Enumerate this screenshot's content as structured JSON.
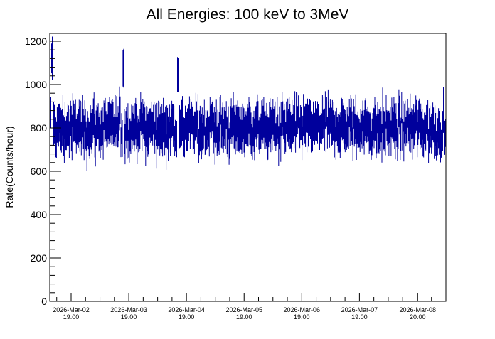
{
  "chart_data": {
    "type": "line",
    "style": "histogram-with-error-bars",
    "title": "All Energies:  100 keV to 3MeV",
    "xlabel": "",
    "ylabel": "Rate(Counts/hour)",
    "ylim": [
      0,
      1236
    ],
    "yticks": [
      0,
      200,
      400,
      600,
      800,
      1000,
      1200
    ],
    "ytick_labels": [
      "0",
      "200",
      "400",
      "600",
      "800",
      "1000",
      "1200"
    ],
    "x_unit": "days since 2026-Mar-02 19:00",
    "xlim": [
      -0.37,
      6.5
    ],
    "xticks": [
      0,
      1,
      2,
      3,
      4,
      5,
      6.01
    ],
    "xtick_labels": [
      {
        "date": "2026-Mar-02",
        "time": "19:00"
      },
      {
        "date": "2026-Mar-03",
        "time": "19:00"
      },
      {
        "date": "2026-Mar-04",
        "time": "19:00"
      },
      {
        "date": "2026-Mar-05",
        "time": "19:00"
      },
      {
        "date": "2026-Mar-06",
        "time": "19:00"
      },
      {
        "date": "2026-Mar-07",
        "time": "19:00"
      },
      {
        "date": "2026-Mar-08",
        "time": "20:00"
      }
    ],
    "series": [
      {
        "name": "rate",
        "color": "#00009c",
        "mean": 800,
        "spread": 55,
        "error": 85,
        "bins": 560,
        "notable_peaks": [
          {
            "x": -0.33,
            "y": 1180
          },
          {
            "x": 0.9,
            "y": 1135
          },
          {
            "x": 1.85,
            "y": 1105
          }
        ]
      }
    ],
    "grid": false,
    "legend": "none"
  }
}
